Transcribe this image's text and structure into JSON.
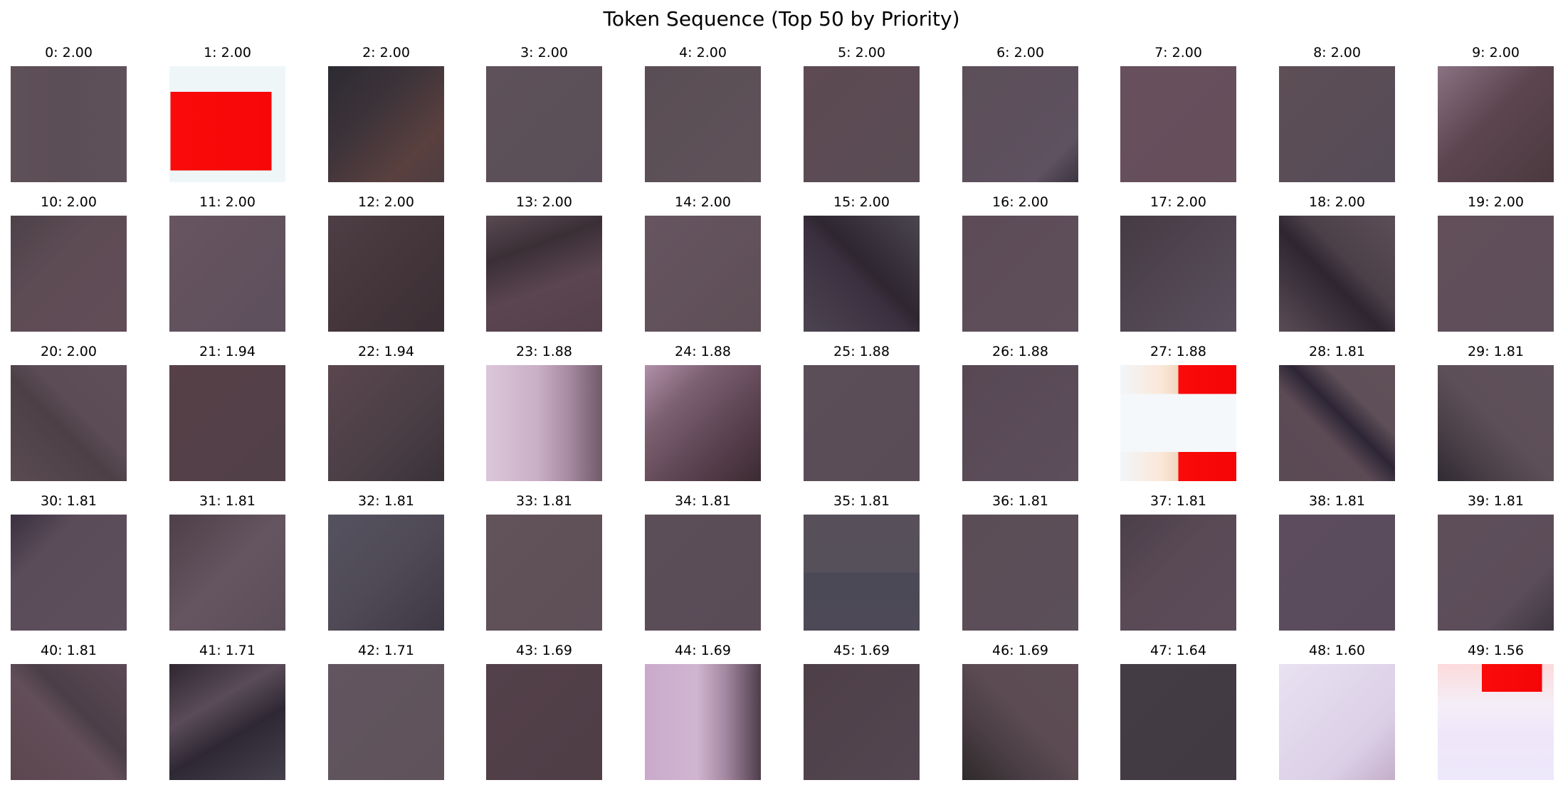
{
  "title": "Token Sequence (Top 50 by Priority)",
  "tokens": [
    {
      "label": "0: 2.00",
      "bg": "linear-gradient(90deg,#5f5058 0%,#5c4e56 50%,#5f5159 100%)"
    },
    {
      "label": "1: 2.00",
      "bg": "linear-gradient(180deg,#eef6f8 0%,#eef6f8 22%,transparent 22%,transparent 90%,#eef6f8 90%),linear-gradient(90deg,#eef6f8 0%,#eef6f8 1%,#fb0a0a 1%,#f70707 88%,#eef6f8 88%)"
    },
    {
      "label": "2: 2.00",
      "bg": "linear-gradient(135deg,#2c2a32 0%,#3e343a 40%,#5a403f 75%,#4d3d40 100%)"
    },
    {
      "label": "3: 2.00",
      "bg": "linear-gradient(135deg,#5e5159 0%,#5a4f58 100%)"
    },
    {
      "label": "4: 2.00",
      "bg": "linear-gradient(135deg,#5a4e55 0%,#5f5259 100%)"
    },
    {
      "label": "5: 2.00",
      "bg": "linear-gradient(135deg,#5d4a52 0%,#5a4c55 100%)"
    },
    {
      "label": "6: 2.00",
      "bg": "linear-gradient(135deg,#5c4f58 0%,#5e5160 80%,#3c3540 100%)"
    },
    {
      "label": "7: 2.00",
      "bg": "linear-gradient(135deg,#684f5d 0%,#654f5a 100%)"
    },
    {
      "label": "8: 2.00",
      "bg": "linear-gradient(135deg,#5e4e55 0%,#554c58 100%)"
    },
    {
      "label": "9: 2.00",
      "bg": "linear-gradient(135deg,#8a7282 0%,#5c454f 45%,#4b393f 100%)"
    },
    {
      "label": "10: 2.00",
      "bg": "linear-gradient(135deg,#4d4148 0%,#5e4c55 40%,#614d56 100%)"
    },
    {
      "label": "11: 2.00",
      "bg": "linear-gradient(135deg,#675560 0%,#5d4f5c 100%)"
    },
    {
      "label": "12: 2.00",
      "bg": "linear-gradient(135deg,#4e3e45 0%,#423439 60%,#3a2f35 100%)"
    },
    {
      "label": "13: 2.00",
      "bg": "linear-gradient(160deg,#5a4a52 0%,#3b2f36 30%,#5a4550 60%,#54404a 100%)"
    },
    {
      "label": "14: 2.00",
      "bg": "linear-gradient(135deg,#665560 0%,#5e4e56 100%)"
    },
    {
      "label": "15: 2.00",
      "bg": "linear-gradient(45deg,#4c4450 0%,#3b3040 45%,#2e2630 55%,#4b4650 100%)"
    },
    {
      "label": "16: 2.00",
      "bg": "linear-gradient(135deg,#5d4c58 0%,#5e4f5b 100%)"
    },
    {
      "label": "17: 2.00",
      "bg": "linear-gradient(135deg,#463b43 0%,#5a4f5e 100%)"
    },
    {
      "label": "18: 2.00",
      "bg": "linear-gradient(45deg,#5a4c55 0%,#2e2530 45%,#4b3f48 60%,#5c4e57 100%)"
    },
    {
      "label": "19: 2.00",
      "bg": "linear-gradient(135deg,#624f5a 0%,#5e4f5b 100%)"
    },
    {
      "label": "20: 2.00",
      "bg": "linear-gradient(45deg,#5a4a52 0%,#4c4046 45%,#5c4c55 60%,#5e4f58 100%)"
    },
    {
      "label": "21: 1.94",
      "bg": "linear-gradient(135deg,#574048 0%,#514048 100%)"
    },
    {
      "label": "22: 1.94",
      "bg": "linear-gradient(135deg,#5a464e 0%,#4a3e45 60%,#3a3238 100%)"
    },
    {
      "label": "23: 1.88",
      "bg": "linear-gradient(90deg,#dcc7da 0%,#c9aec6 45%,#a88ca3 70%,#715a6a 100%)"
    },
    {
      "label": "24: 1.88",
      "bg": "linear-gradient(135deg,#b18faa 0%,#7b6070 30%,#5b4250 65%,#3b2b32 100%)"
    },
    {
      "label": "25: 1.88",
      "bg": "linear-gradient(135deg,#5c4e58 0%,#5a4c56 100%)"
    },
    {
      "label": "26: 1.88",
      "bg": "linear-gradient(135deg,#574854 0%,#5c4e5a 100%)"
    },
    {
      "label": "27: 1.88",
      "bg": "linear-gradient(180deg,transparent 0%,transparent 25%,#f4f8fa 25%,#f4f8fa 75%,transparent 75%),linear-gradient(90deg,#f1f6fa 0%,#fbe7d8 35%,#f0d8c0 50%,#fb0a0a 50%,#f50505 100%)"
    },
    {
      "label": "28: 1.81",
      "bg": "linear-gradient(45deg,#5a4a54 0%,#5c4a55 40%,#2d2636 55%,#5e4f58 70%,#625059 100%)"
    },
    {
      "label": "29: 1.81",
      "bg": "linear-gradient(45deg,#2f2a33 0%,#4a3f47 25%,#5d4f58 50%,#5f505a 100%)"
    },
    {
      "label": "30: 1.81",
      "bg": "linear-gradient(135deg,#3a3040 0%,#5b4c59 30%,#5d4f5c 100%)"
    },
    {
      "label": "31: 1.81",
      "bg": "linear-gradient(135deg,#4e3f48 0%,#655560 50%,#5c4e59 100%)"
    },
    {
      "label": "32: 1.81",
      "bg": "linear-gradient(135deg,#555260 0%,#4f4a55 50%,#3e3845 100%)"
    },
    {
      "label": "33: 1.81",
      "bg": "linear-gradient(135deg,#625259 0%,#5e4f58 100%)"
    },
    {
      "label": "34: 1.81",
      "bg": "linear-gradient(135deg,#5c4e58 0%,#5a4c57 100%)"
    },
    {
      "label": "35: 1.81",
      "bg": "linear-gradient(180deg,#57505b 0%,#56505b 50%,#4c4957 50%,#4d4956 100%)"
    },
    {
      "label": "36: 1.81",
      "bg": "linear-gradient(135deg,#5b4d56 0%,#5b4f59 100%)"
    },
    {
      "label": "37: 1.81",
      "bg": "linear-gradient(135deg,#4b3f49 0%,#5a4a56 45%,#5c4c59 100%)"
    },
    {
      "label": "38: 1.81",
      "bg": "linear-gradient(135deg,#5c4c5e 0%,#5a4b5c 100%)"
    },
    {
      "label": "39: 1.81",
      "bg": "linear-gradient(135deg,#5e4e5a 0%,#5b4d59 70%,#3e3641 100%)"
    },
    {
      "label": "40: 1.81",
      "bg": "linear-gradient(45deg,#5c4650 0%,#624e58 45%,#4b3e47 60%,#5c4a55 100%)"
    },
    {
      "label": "41: 1.71",
      "bg": "linear-gradient(150deg,#2f2630 0%,#5a4c58 35%,#2e2834 60%,#44404c 100%)"
    },
    {
      "label": "42: 1.71",
      "bg": "linear-gradient(135deg,#625560 0%,#5f5259 100%)"
    },
    {
      "label": "43: 1.69",
      "bg": "linear-gradient(135deg,#53404a 0%,#4f3e46 100%)"
    },
    {
      "label": "44: 1.69",
      "bg": "linear-gradient(90deg,#caaacc 0%,#d0b5d0 45%,#a3869f 70%,#4e3e4c 100%)"
    },
    {
      "label": "45: 1.69",
      "bg": "linear-gradient(135deg,#4e3f47 0%,#534650 100%)"
    },
    {
      "label": "46: 1.69",
      "bg": "linear-gradient(45deg,#2e2a2a 0%,#4b3e45 30%,#5c4b53 55%,#5d4c54 100%)"
    },
    {
      "label": "47: 1.64",
      "bg": "linear-gradient(135deg,#443c45 0%,#423a42 100%)"
    },
    {
      "label": "48: 1.60",
      "bg": "linear-gradient(135deg,#e8e2f2 0%,#dbcfe6 70%,#c4aec8 100%)"
    },
    {
      "label": "49: 1.56",
      "bg": "linear-gradient(90deg,transparent 0%,transparent 38%,#fb0a0a 38%,#f50606 90%,transparent 90%) 0 0 / 100% 24% no-repeat,linear-gradient(180deg,#fcdada 0%,#f4eef8 35%,#f0e6fa 60%,#ede8fb 100%)"
    }
  ]
}
